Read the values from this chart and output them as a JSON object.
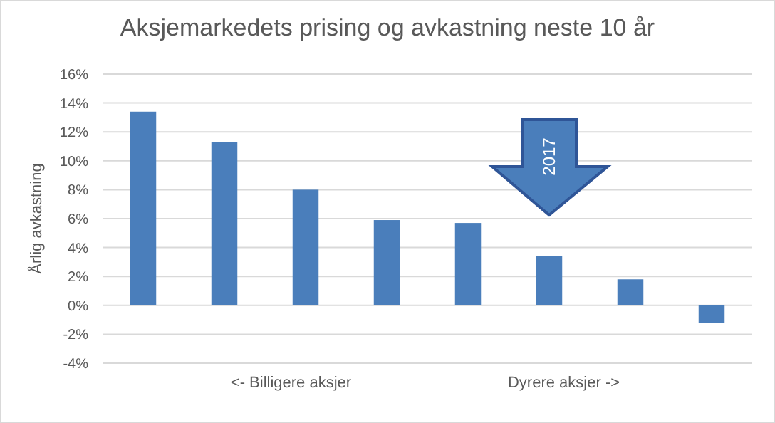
{
  "chart_data": {
    "type": "bar",
    "title": "Aksjemarkedets prising og avkastning neste 10 år",
    "ylabel": "Årlig avkastning",
    "categories": [
      null,
      null,
      null,
      null,
      null,
      null,
      null,
      null
    ],
    "values": [
      13.4,
      11.3,
      8.0,
      5.9,
      5.7,
      3.4,
      1.8,
      -1.2
    ],
    "color": "#4a7ebb",
    "ylim": [
      -4,
      16
    ],
    "yticks": [
      {
        "value": -4,
        "label": "-4%"
      },
      {
        "value": -2,
        "label": "-2%"
      },
      {
        "value": 0,
        "label": "0%"
      },
      {
        "value": 2,
        "label": "2%"
      },
      {
        "value": 4,
        "label": "4%"
      },
      {
        "value": 6,
        "label": "6%"
      },
      {
        "value": 8,
        "label": "8%"
      },
      {
        "value": 10,
        "label": "10%"
      },
      {
        "value": 12,
        "label": "12%"
      },
      {
        "value": 14,
        "label": "14%"
      },
      {
        "value": 16,
        "label": "16%"
      }
    ],
    "grid": "y",
    "annotations": [
      "<- Billigere aksjer",
      "Dyrere aksjer ->",
      "2017"
    ]
  }
}
